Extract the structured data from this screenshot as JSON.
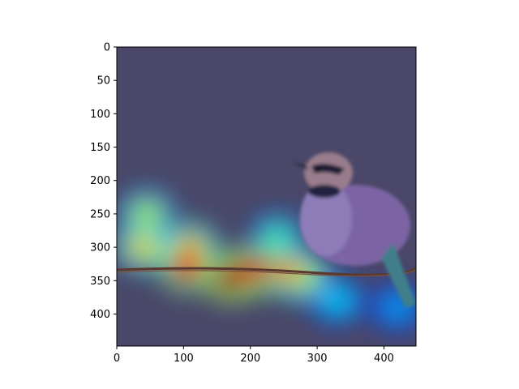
{
  "chart_data": {
    "type": "heatmap",
    "title": "",
    "xlabel": "",
    "ylabel": "",
    "xlim": [
      0,
      448
    ],
    "ylim": [
      448,
      0
    ],
    "x_ticks": [
      0,
      100,
      200,
      300,
      400
    ],
    "y_ticks": [
      0,
      50,
      100,
      150,
      200,
      250,
      300,
      350,
      400
    ],
    "x_tick_labels": [
      "0",
      "100",
      "200",
      "300",
      "400"
    ],
    "y_tick_labels": [
      "0",
      "50",
      "100",
      "150",
      "200",
      "250",
      "300",
      "350",
      "400"
    ],
    "image": "bird (horned lark) perched on barbed wire against a muted gray-purple background",
    "overlay": "attention heatmap using a jet colormap, semi-transparent over the photo",
    "heatmap_hotspots": [
      {
        "x": 40,
        "y": 300,
        "intensity": 0.65
      },
      {
        "x": 45,
        "y": 250,
        "intensity": 0.55
      },
      {
        "x": 105,
        "y": 330,
        "intensity": 0.85
      },
      {
        "x": 110,
        "y": 300,
        "intensity": 0.7
      },
      {
        "x": 170,
        "y": 345,
        "intensity": 0.95
      },
      {
        "x": 205,
        "y": 335,
        "intensity": 0.9
      },
      {
        "x": 255,
        "y": 335,
        "intensity": 0.75
      },
      {
        "x": 280,
        "y": 345,
        "intensity": 0.55
      },
      {
        "x": 240,
        "y": 285,
        "intensity": 0.45
      },
      {
        "x": 330,
        "y": 380,
        "intensity": 0.35
      },
      {
        "x": 420,
        "y": 390,
        "intensity": 0.3
      }
    ],
    "grid": false,
    "colors": {
      "background": "#4a4768",
      "wire": "#5a3a30",
      "bird_body": "#8a6ea0",
      "bird_head": "#9a7d8c"
    }
  }
}
